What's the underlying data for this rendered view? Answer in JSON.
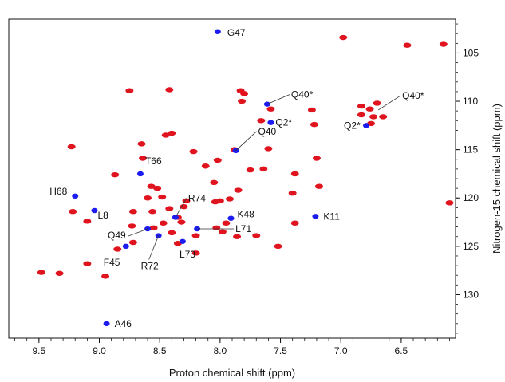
{
  "chart_data": {
    "type": "scatter",
    "title": "",
    "xlabel": "Proton chemical shift (ppm)",
    "ylabel": "Nitrogen-15 chemical shift (ppm)",
    "xlim": [
      9.75,
      6.05
    ],
    "ylim": [
      101.5,
      134.5
    ],
    "x_reversed": true,
    "y_reversed": true,
    "grid": false,
    "x_ticks": [
      "9.5",
      "9.0",
      "8.5",
      "8.0",
      "7.5",
      "7.0",
      "6.5"
    ],
    "y_ticks": [
      "105",
      "110",
      "115",
      "120",
      "125",
      "130"
    ],
    "colors": {
      "series_a": "#e0141e",
      "series_b": "#1c1cf2"
    },
    "series": [
      {
        "color_key": "series_a",
        "points": [
          [
            9.48,
            127.7
          ],
          [
            9.33,
            127.8
          ],
          [
            9.23,
            114.7
          ],
          [
            9.22,
            121.4
          ],
          [
            9.1,
            122.4
          ],
          [
            9.1,
            126.8
          ],
          [
            8.95,
            128.1
          ],
          [
            8.87,
            117.6
          ],
          [
            8.75,
            108.9
          ],
          [
            8.72,
            124.6
          ],
          [
            8.73,
            122.9
          ],
          [
            8.65,
            114.4
          ],
          [
            8.64,
            115.9
          ],
          [
            8.6,
            120.0
          ],
          [
            8.57,
            118.8
          ],
          [
            8.56,
            121.4
          ],
          [
            8.52,
            119.0
          ],
          [
            8.48,
            119.9
          ],
          [
            8.45,
            113.5
          ],
          [
            8.4,
            113.3
          ],
          [
            8.42,
            108.8
          ],
          [
            8.42,
            121.1
          ],
          [
            8.4,
            123.6
          ],
          [
            8.35,
            122.0
          ],
          [
            8.32,
            122.5
          ],
          [
            8.3,
            120.9
          ],
          [
            8.28,
            120.3
          ],
          [
            8.22,
            115.2
          ],
          [
            8.2,
            123.9
          ],
          [
            8.2,
            125.7
          ],
          [
            8.12,
            116.7
          ],
          [
            8.05,
            118.4
          ],
          [
            8.04,
            120.4
          ],
          [
            8.03,
            123.1
          ],
          [
            8.02,
            116.1
          ],
          [
            8.0,
            120.3
          ],
          [
            7.95,
            122.6
          ],
          [
            7.92,
            120.1
          ],
          [
            7.88,
            115.0
          ],
          [
            7.86,
            124.0
          ],
          [
            7.85,
            119.2
          ],
          [
            7.83,
            108.9
          ],
          [
            7.82,
            110.0
          ],
          [
            7.8,
            109.2
          ],
          [
            7.75,
            117.1
          ],
          [
            7.66,
            112.0
          ],
          [
            7.64,
            117.0
          ],
          [
            7.6,
            114.9
          ],
          [
            7.58,
            110.8
          ],
          [
            7.52,
            125.0
          ],
          [
            7.4,
            119.5
          ],
          [
            7.38,
            117.5
          ],
          [
            7.38,
            122.6
          ],
          [
            7.2,
            115.9
          ],
          [
            7.18,
            118.8
          ],
          [
            7.22,
            112.4
          ],
          [
            7.24,
            110.9
          ],
          [
            6.98,
            103.4
          ],
          [
            6.83,
            111.4
          ],
          [
            6.83,
            110.5
          ],
          [
            6.76,
            110.8
          ],
          [
            6.75,
            112.3
          ],
          [
            6.73,
            111.6
          ],
          [
            6.7,
            110.2
          ],
          [
            6.65,
            111.6
          ],
          [
            6.45,
            104.2
          ],
          [
            6.15,
            104.1
          ],
          [
            6.1,
            120.5
          ],
          [
            8.85,
            125.3
          ],
          [
            8.47,
            122.6
          ],
          [
            8.55,
            123.1
          ],
          [
            8.35,
            124.7
          ],
          [
            7.98,
            123.5
          ],
          [
            7.7,
            123.9
          ],
          [
            8.72,
            121.4
          ]
        ]
      },
      {
        "color_key": "series_b",
        "points": [
          [
            8.02,
            102.8
          ],
          [
            9.2,
            119.8
          ],
          [
            9.04,
            121.3
          ],
          [
            8.66,
            117.5
          ],
          [
            8.51,
            123.9
          ],
          [
            8.6,
            123.2
          ],
          [
            8.78,
            125.0
          ],
          [
            8.37,
            122.0
          ],
          [
            8.31,
            124.5
          ],
          [
            8.19,
            123.2
          ],
          [
            7.91,
            122.1
          ],
          [
            7.21,
            121.9
          ],
          [
            8.94,
            133.0
          ],
          [
            7.87,
            115.1
          ],
          [
            7.58,
            112.2
          ],
          [
            6.79,
            112.5
          ],
          [
            7.61,
            110.3
          ]
        ]
      }
    ],
    "annotations": [
      {
        "label": "G47",
        "at": [
          8.02,
          102.8
        ]
      },
      {
        "label": "Q40*",
        "at": [
          7.61,
          110.3
        ]
      },
      {
        "label": "Q40*",
        "at": [
          6.69,
          110.9
        ]
      },
      {
        "label": "Q2*",
        "at": [
          7.58,
          112.2
        ]
      },
      {
        "label": "Q2*",
        "at": [
          6.79,
          112.5
        ]
      },
      {
        "label": "Q40",
        "at": [
          7.87,
          115.1
        ]
      },
      {
        "label": "T66",
        "at": [
          8.66,
          117.5
        ]
      },
      {
        "label": "H68",
        "at": [
          9.2,
          119.8
        ]
      },
      {
        "label": "L8",
        "at": [
          9.04,
          121.3
        ]
      },
      {
        "label": "R74",
        "at": [
          8.37,
          122.0
        ]
      },
      {
        "label": "K48",
        "at": [
          7.91,
          122.1
        ]
      },
      {
        "label": "K11",
        "at": [
          7.21,
          121.9
        ]
      },
      {
        "label": "L71",
        "at": [
          8.19,
          123.2
        ]
      },
      {
        "label": "Q49",
        "at": [
          8.6,
          123.2
        ]
      },
      {
        "label": "F45",
        "at": [
          8.78,
          125.0
        ]
      },
      {
        "label": "L73",
        "at": [
          8.31,
          124.5
        ]
      },
      {
        "label": "R72",
        "at": [
          8.51,
          123.9
        ]
      },
      {
        "label": "A46",
        "at": [
          8.94,
          133.0
        ]
      }
    ]
  }
}
